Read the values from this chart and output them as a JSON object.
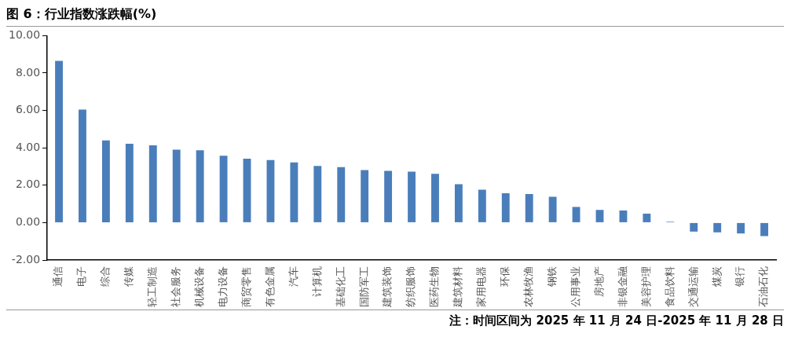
{
  "chart_data": {
    "type": "bar",
    "title": "图 6：行业指数涨跌幅(%)",
    "categories": [
      "通信",
      "电子",
      "综合",
      "传媒",
      "轻工制造",
      "社会服务",
      "机械设备",
      "电力设备",
      "商贸零售",
      "有色金属",
      "汽车",
      "计算机",
      "基础化工",
      "国防军工",
      "建筑装饰",
      "纺织服饰",
      "医药生物",
      "建筑材料",
      "家用电器",
      "环保",
      "农林牧渔",
      "钢铁",
      "公用事业",
      "房地产",
      "非银金融",
      "美容护理",
      "食品饮料",
      "交通运输",
      "煤炭",
      "银行",
      "石油石化"
    ],
    "values": [
      8.65,
      6.05,
      4.4,
      4.22,
      4.13,
      3.9,
      3.87,
      3.58,
      3.42,
      3.35,
      3.22,
      3.03,
      2.97,
      2.81,
      2.77,
      2.73,
      2.61,
      2.05,
      1.76,
      1.57,
      1.53,
      1.38,
      0.84,
      0.68,
      0.65,
      0.48,
      0.05,
      -0.48,
      -0.52,
      -0.58,
      -0.72
    ],
    "color": "#4a7ebb",
    "ylim": [
      -2,
      10
    ],
    "yticks": [
      {
        "value": -2,
        "label": "-2.00"
      },
      {
        "value": 0,
        "label": "0.00"
      },
      {
        "value": 2,
        "label": "2.00"
      },
      {
        "value": 4,
        "label": "4.00"
      },
      {
        "value": 6,
        "label": "6.00"
      },
      {
        "value": 8,
        "label": "8.00"
      },
      {
        "value": 10,
        "label": "10.00"
      }
    ],
    "grid": false,
    "legend": false,
    "annotations": [
      "注：时间区间为 2025 年 11 月 24 日-2025 年 11 月 28 日"
    ]
  }
}
